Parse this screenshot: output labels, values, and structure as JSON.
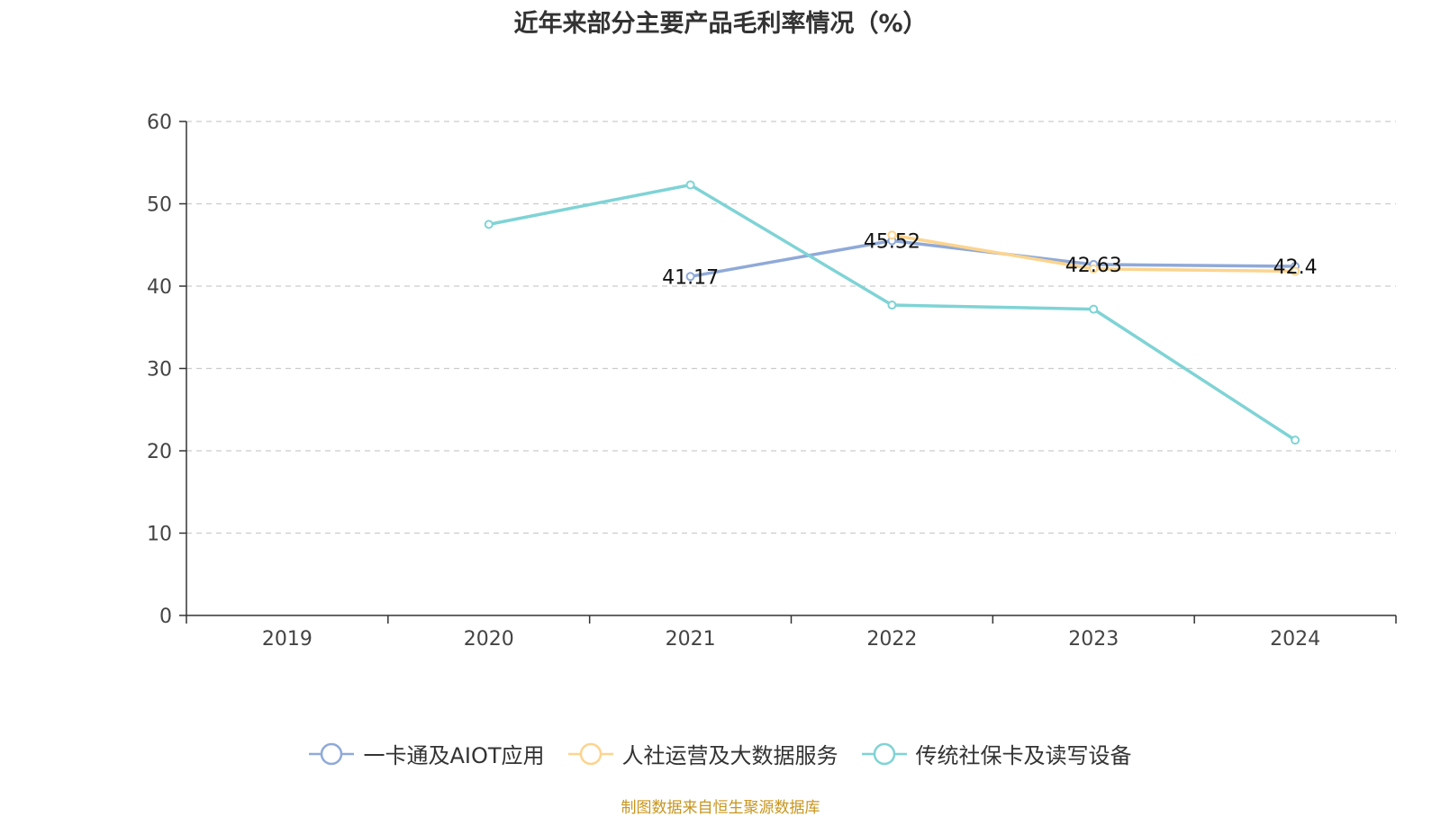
{
  "chart_data": {
    "type": "line",
    "title": "近年来部分主要产品毛利率情况（%）",
    "categories": [
      "2019",
      "2020",
      "2021",
      "2022",
      "2023",
      "2024"
    ],
    "ylim": [
      0,
      60
    ],
    "yticks": [
      "0",
      "10",
      "20",
      "30",
      "40",
      "50",
      "60"
    ],
    "grid": true,
    "legend_position": "bottom",
    "series": [
      {
        "name": "一卡通及AIOT应用",
        "color": "#8fa9d8",
        "values": [
          null,
          null,
          41.17,
          45.52,
          42.63,
          42.4
        ],
        "data_labels": [
          null,
          null,
          "41.17",
          "45.52",
          "42.63",
          "42.4"
        ]
      },
      {
        "name": "人社运营及大数据服务",
        "color": "#fcd48e",
        "values": [
          null,
          null,
          null,
          46.2,
          42.1,
          41.8
        ]
      },
      {
        "name": "传统社保卡及读写设备",
        "color": "#7fd3d5",
        "values": [
          null,
          47.5,
          52.3,
          37.7,
          37.2,
          21.3
        ]
      }
    ]
  },
  "source_note": "制图数据来自恒生聚源数据库"
}
